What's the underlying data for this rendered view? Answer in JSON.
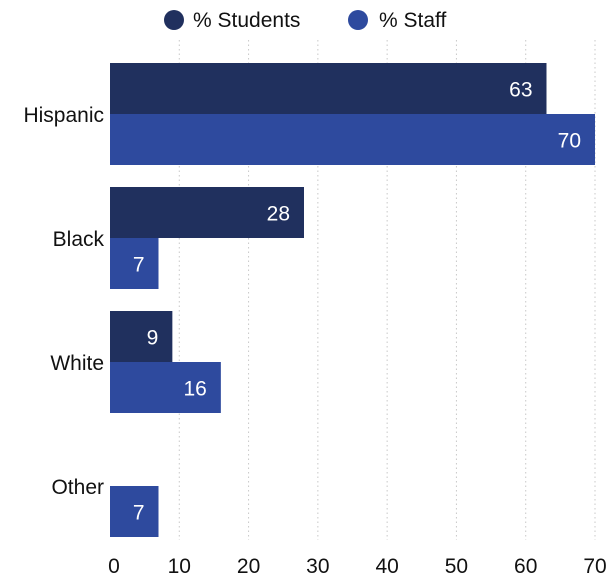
{
  "chart_data": {
    "type": "bar",
    "orientation": "horizontal",
    "categories": [
      "Hispanic",
      "Black",
      "White",
      "Other"
    ],
    "series": [
      {
        "name": "% Students",
        "values": [
          63,
          28,
          9,
          null
        ],
        "color": "#20305e"
      },
      {
        "name": "% Staff",
        "values": [
          70,
          7,
          16,
          7
        ],
        "color": "#2e4a9e"
      }
    ],
    "xlim": [
      0,
      70
    ],
    "xticks": [
      0,
      10,
      20,
      30,
      40,
      50,
      60,
      70
    ],
    "grid": "vertical dotted",
    "legend_position": "top",
    "data_labels": true,
    "label_color": "#ffffff",
    "text_color": "#111111",
    "grid_color": "#c8c8c8"
  }
}
